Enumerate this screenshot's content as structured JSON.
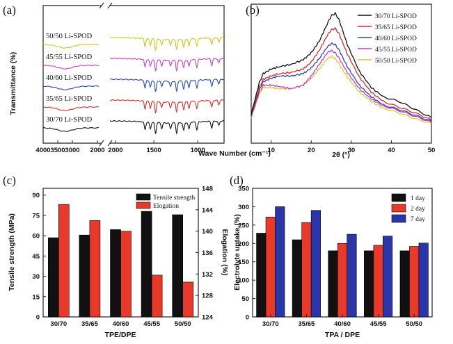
{
  "panels": {
    "a": {
      "letter": "(a)"
    },
    "b": {
      "letter": "(b)"
    },
    "c": {
      "letter": "(c)"
    },
    "d": {
      "letter": "(d)"
    }
  },
  "chart_data": [
    {
      "id": "a",
      "type": "line",
      "xlabel": "Wave Number (cm⁻¹)",
      "ylabel": "Transmittance (%)",
      "x_ticks_left": [
        4000,
        3500,
        3000,
        2000
      ],
      "x_ticks_right": [
        2000,
        1500,
        1000
      ],
      "xlim_left": [
        4000,
        2000
      ],
      "xlim_right": [
        2000,
        700
      ],
      "axis_break": true,
      "series": [
        {
          "name": "50/50 Li-SPOD",
          "color": "#c8c81e",
          "offset": 4
        },
        {
          "name": "45/55 Li-SPOD",
          "color": "#d23cc8",
          "offset": 3
        },
        {
          "name": "40/60 Li-SPOD",
          "color": "#2846b4",
          "offset": 2
        },
        {
          "name": "35/65 Li-SPOD",
          "color": "#e62828",
          "offset": 1
        },
        {
          "name": "30/70 Li-SPOD",
          "color": "#111111",
          "offset": 0
        }
      ],
      "peaks": [
        {
          "x": 1600,
          "depth": 0.7
        },
        {
          "x": 1540,
          "depth": 0.6
        },
        {
          "x": 1480,
          "depth": 1.0
        },
        {
          "x": 1410,
          "depth": 0.5
        },
        {
          "x": 1310,
          "depth": 0.5
        },
        {
          "x": 1240,
          "depth": 0.9
        },
        {
          "x": 1160,
          "depth": 0.7
        },
        {
          "x": 1100,
          "depth": 0.6
        },
        {
          "x": 1010,
          "depth": 0.7
        },
        {
          "x": 840,
          "depth": 0.6
        },
        {
          "x": 760,
          "depth": 0.4
        }
      ]
    },
    {
      "id": "b",
      "type": "line",
      "xlabel": "2θ (°)",
      "ylabel": "",
      "x_ticks": [
        10,
        20,
        30,
        40,
        50
      ],
      "xlim": [
        5,
        50
      ],
      "series": [
        {
          "name": "30/70 Li-SPOD",
          "color": "#111111",
          "x": [
            5,
            7,
            8,
            10,
            12,
            15,
            18,
            20,
            22,
            24,
            25,
            26,
            27,
            29,
            32,
            35,
            38,
            42,
            46,
            50
          ],
          "y": [
            25,
            52,
            60,
            64,
            66,
            68,
            72,
            78,
            88,
            103,
            110,
            112,
            106,
            85,
            62,
            48,
            40,
            36,
            29,
            22
          ]
        },
        {
          "name": "35/65 Li-SPOD",
          "color": "#e62828",
          "x": [
            5,
            7,
            8,
            10,
            12,
            15,
            18,
            20,
            22,
            24,
            25,
            26,
            27,
            29,
            32,
            35,
            38,
            42,
            46,
            50
          ],
          "y": [
            24,
            48,
            55,
            58,
            60,
            61,
            64,
            70,
            80,
            93,
            98,
            99,
            94,
            77,
            57,
            44,
            36,
            31,
            26,
            20
          ]
        },
        {
          "name": "40/60 Li-SPOD",
          "color": "#2846b4",
          "x": [
            5,
            7,
            8,
            10,
            12,
            15,
            18,
            20,
            22,
            24,
            25,
            26,
            27,
            29,
            32,
            35,
            38,
            42,
            46,
            50
          ],
          "y": [
            23,
            46,
            53,
            56,
            58,
            58,
            60,
            65,
            73,
            83,
            86,
            85,
            80,
            66,
            50,
            40,
            33,
            29,
            24,
            19
          ]
        },
        {
          "name": "45/55 Li-SPOD",
          "color": "#d23cc8",
          "x": [
            5,
            7,
            8,
            10,
            12,
            15,
            18,
            20,
            22,
            24,
            25,
            26,
            27,
            29,
            32,
            35,
            38,
            42,
            46,
            50
          ],
          "y": [
            23,
            44,
            50,
            50,
            49,
            47,
            50,
            58,
            68,
            78,
            80,
            78,
            73,
            61,
            47,
            38,
            32,
            28,
            23,
            18
          ]
        },
        {
          "name": "50/50 Li-SPOD",
          "color": "#d6cc3a",
          "x": [
            5,
            7,
            8,
            10,
            12,
            15,
            18,
            20,
            22,
            24,
            25,
            26,
            27,
            29,
            32,
            35,
            38,
            42,
            46,
            50
          ],
          "y": [
            22,
            42,
            48,
            48,
            47,
            47,
            50,
            56,
            64,
            73,
            75,
            73,
            68,
            57,
            44,
            36,
            30,
            26,
            21,
            17
          ]
        }
      ]
    },
    {
      "id": "c",
      "type": "bar",
      "xlabel": "TPE/DPE",
      "ylabel": "Tensile strength (MPa)",
      "y2label": "Elogation (%)",
      "categories": [
        "30/70",
        "35/65",
        "40/60",
        "45/55",
        "50/50"
      ],
      "ylim": [
        0,
        95
      ],
      "y_ticks": [
        0,
        15,
        30,
        45,
        60,
        75,
        90
      ],
      "y2lim": [
        124,
        148
      ],
      "y2_ticks": [
        124,
        128,
        132,
        136,
        140,
        144,
        148
      ],
      "series": [
        {
          "name": "Tensile strength",
          "color": "#111111",
          "axis": "left",
          "values": [
            58.5,
            60.5,
            64.5,
            78,
            75.5
          ]
        },
        {
          "name": "Elogation",
          "color": "#e8392a",
          "axis": "right",
          "values": [
            145,
            142,
            140,
            131.8,
            130.5
          ]
        }
      ],
      "legend": "top-right"
    },
    {
      "id": "d",
      "type": "bar",
      "xlabel": "TPA / DPE",
      "ylabel": "Electrolyte uptake (%)",
      "categories": [
        "30/70",
        "35/65",
        "40/60",
        "45/55",
        "50/50"
      ],
      "ylim": [
        0,
        350
      ],
      "y_ticks": [
        0,
        50,
        100,
        150,
        200,
        250,
        300,
        350
      ],
      "series": [
        {
          "name": "1 day",
          "color": "#111111",
          "values": [
            228,
            210,
            180,
            180,
            180
          ]
        },
        {
          "name": "2 day",
          "color": "#e8392a",
          "values": [
            272,
            257,
            200,
            195,
            192
          ]
        },
        {
          "name": "7 day",
          "color": "#2a35a8",
          "values": [
            300,
            290,
            225,
            220,
            201
          ]
        }
      ],
      "legend": "top-right"
    }
  ]
}
